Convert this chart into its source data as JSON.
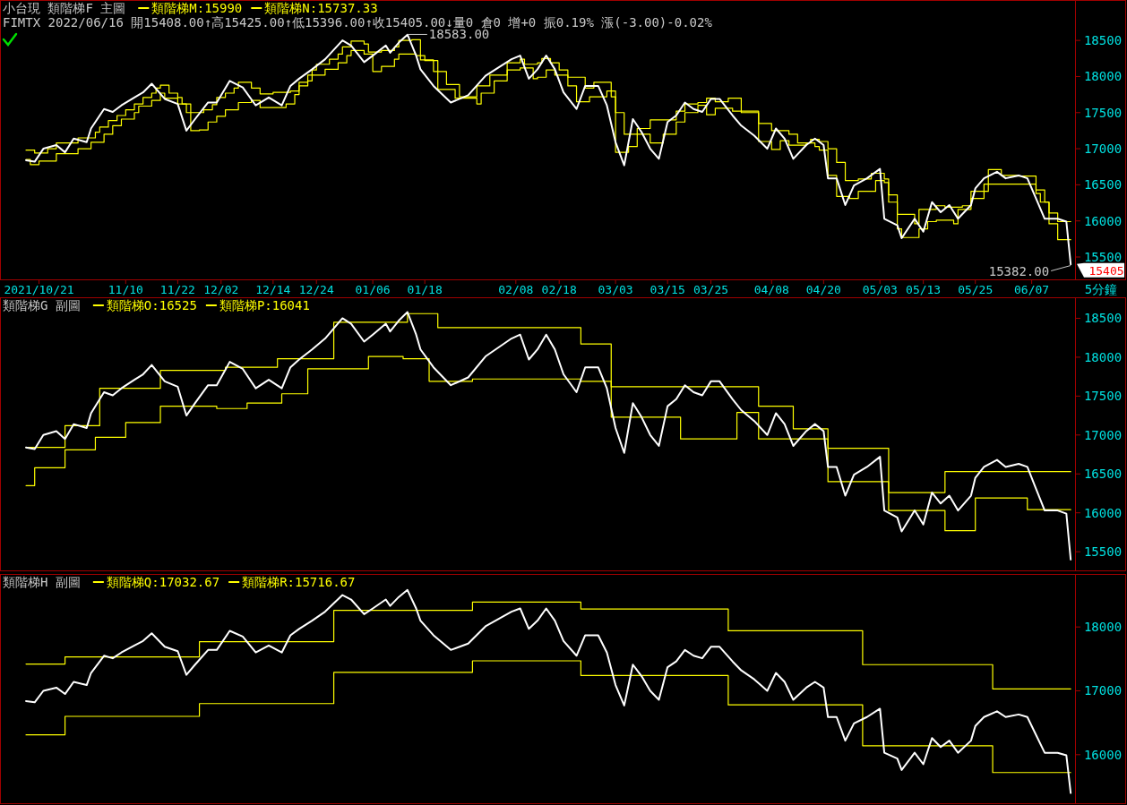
{
  "chart_data": [
    {
      "type": "line",
      "title": "小台現 類階梯F 主圖",
      "subtitle": "FIMTX 2022/06/16 開15408.00↑高15425.00↑低15396.00↑收15405.00↓量0 倉0 增+0 振0.19% 漲(-3.00)-0.02%",
      "xlabel": "5分鐘",
      "legend": "top left",
      "xlim": [
        "2021-10-12",
        "2022-06-17"
      ],
      "xticks": [
        {
          "value": "2021-10-21",
          "label": "2021/10/21"
        },
        {
          "value": "2021-11-10",
          "label": "11/10"
        },
        {
          "value": "2021-11-22",
          "label": "11/22"
        },
        {
          "value": "2021-12-02",
          "label": "12/02"
        },
        {
          "value": "2021-12-14",
          "label": "12/14"
        },
        {
          "value": "2021-12-24",
          "label": "12/24"
        },
        {
          "value": "2022-01-06",
          "label": "01/06"
        },
        {
          "value": "2022-01-18",
          "label": "01/18"
        },
        {
          "value": "2022-02-08",
          "label": "02/08"
        },
        {
          "value": "2022-02-18",
          "label": "02/18"
        },
        {
          "value": "2022-03-03",
          "label": "03/03"
        },
        {
          "value": "2022-03-15",
          "label": "03/15"
        },
        {
          "value": "2022-03-25",
          "label": "03/25"
        },
        {
          "value": "2022-04-08",
          "label": "04/08"
        },
        {
          "value": "2022-04-20",
          "label": "04/20"
        },
        {
          "value": "2022-05-03",
          "label": "05/03"
        },
        {
          "value": "2022-05-13",
          "label": "05/13"
        },
        {
          "value": "2022-05-25",
          "label": "05/25"
        },
        {
          "value": "2022-06-07",
          "label": "06/07"
        }
      ],
      "ylim": [
        15190,
        19060
      ],
      "yticks": [
        15500,
        16000,
        16500,
        17000,
        17500,
        18000,
        18500
      ],
      "annotations": [
        {
          "text": "18583.00",
          "x": "2022-01-14",
          "y": 18583
        },
        {
          "text": "15382.00",
          "x": "2022-06-16",
          "y": 15382
        },
        {
          "text": "15405",
          "x": "2022-06-16",
          "y": 15405
        }
      ],
      "series": [
        {
          "type": "line",
          "color": "#ffffff",
          "x": [
            "2021-10-18",
            "2021-10-20",
            "2021-10-22",
            "2021-10-25",
            "2021-10-27",
            "2021-10-29",
            "2021-11-01",
            "2021-11-02",
            "2021-11-05",
            "2021-11-07",
            "2021-11-09",
            "2021-11-12",
            "2021-11-14",
            "2021-11-16",
            "2021-11-19",
            "2021-11-22",
            "2021-11-24",
            "2021-11-26",
            "2021-11-29",
            "2021-12-01",
            "2021-12-04",
            "2021-12-07",
            "2021-12-10",
            "2021-12-13",
            "2021-12-16",
            "2021-12-18",
            "2021-12-20",
            "2021-12-23",
            "2021-12-26",
            "2021-12-30",
            "2022-01-01",
            "2022-01-04",
            "2022-01-06",
            "2022-01-09",
            "2022-01-10",
            "2022-01-12",
            "2022-01-14",
            "2022-01-16",
            "2022-01-17",
            "2022-01-20",
            "2022-01-24",
            "2022-01-28",
            "2022-02-01",
            "2022-02-07",
            "2022-02-09",
            "2022-02-11",
            "2022-02-13",
            "2022-02-15",
            "2022-02-17",
            "2022-02-19",
            "2022-02-22",
            "2022-02-24",
            "2022-02-27",
            "2022-03-01",
            "2022-03-03",
            "2022-03-05",
            "2022-03-07",
            "2022-03-09",
            "2022-03-11",
            "2022-03-13",
            "2022-03-15",
            "2022-03-17",
            "2022-03-19",
            "2022-03-21",
            "2022-03-23",
            "2022-03-25",
            "2022-03-27",
            "2022-03-30",
            "2022-04-01",
            "2022-04-04",
            "2022-04-07",
            "2022-04-09",
            "2022-04-11",
            "2022-04-13",
            "2022-04-16",
            "2022-04-18",
            "2022-04-20",
            "2022-04-21",
            "2022-04-23",
            "2022-04-25",
            "2022-04-27",
            "2022-04-30",
            "2022-05-03",
            "2022-05-04",
            "2022-05-07",
            "2022-05-08",
            "2022-05-11",
            "2022-05-13",
            "2022-05-15",
            "2022-05-17",
            "2022-05-19",
            "2022-05-21",
            "2022-05-24",
            "2022-05-25",
            "2022-05-27",
            "2022-05-30",
            "2022-06-01",
            "2022-06-04",
            "2022-06-06",
            "2022-06-08",
            "2022-06-10",
            "2022-06-13",
            "2022-06-15",
            "2022-06-16"
          ],
          "values": [
            16840,
            16820,
            17000,
            17050,
            16950,
            17140,
            17090,
            17280,
            17550,
            17510,
            17600,
            17710,
            17780,
            17900,
            17690,
            17620,
            17250,
            17410,
            17640,
            17640,
            17940,
            17850,
            17600,
            17710,
            17600,
            17870,
            17970,
            18100,
            18240,
            18500,
            18430,
            18200,
            18290,
            18430,
            18330,
            18470,
            18580,
            18290,
            18100,
            17870,
            17640,
            17740,
            18010,
            18240,
            18290,
            17970,
            18100,
            18290,
            18100,
            17780,
            17550,
            17870,
            17870,
            17600,
            17090,
            16770,
            17410,
            17230,
            17000,
            16860,
            17370,
            17460,
            17640,
            17550,
            17510,
            17690,
            17690,
            17460,
            17320,
            17180,
            17000,
            17280,
            17140,
            16860,
            17050,
            17140,
            17050,
            16590,
            16590,
            16220,
            16490,
            16590,
            16720,
            16030,
            15940,
            15760,
            16030,
            15850,
            16260,
            16120,
            16220,
            16030,
            16220,
            16450,
            16590,
            16680,
            16590,
            16630,
            16590,
            16310,
            16030,
            16030,
            15990,
            15400
          ]
        },
        {
          "type": "step",
          "name": "類階梯M:15990",
          "color": "#ffff00",
          "x": [
            "2021-10-18",
            "2021-10-20",
            "2021-10-23",
            "2021-10-25",
            "2021-10-30",
            "2021-11-03",
            "2021-11-04",
            "2021-11-06",
            "2021-11-08",
            "2021-11-10",
            "2021-11-12",
            "2021-11-14",
            "2021-11-16",
            "2021-11-17",
            "2021-11-18",
            "2021-11-20",
            "2021-11-22",
            "2021-11-23",
            "2021-11-24",
            "2021-11-28",
            "2021-11-30",
            "2021-12-01",
            "2021-12-03",
            "2021-12-05",
            "2021-12-06",
            "2021-12-09",
            "2021-12-11",
            "2021-12-14",
            "2021-12-18",
            "2021-12-20",
            "2021-12-22",
            "2021-12-23",
            "2021-12-24",
            "2021-12-27",
            "2021-12-29",
            "2021-12-30",
            "2022-01-01",
            "2022-01-04",
            "2022-01-05",
            "2022-01-08",
            "2022-01-11",
            "2022-01-12",
            "2022-01-15",
            "2022-01-17",
            "2022-01-20",
            "2022-01-23",
            "2022-01-26",
            "2022-01-30",
            "2022-02-02",
            "2022-02-06",
            "2022-02-09",
            "2022-02-10",
            "2022-02-13",
            "2022-02-14",
            "2022-02-16",
            "2022-02-18",
            "2022-02-20",
            "2022-02-24",
            "2022-02-26",
            "2022-03-02",
            "2022-03-03",
            "2022-03-05",
            "2022-03-08",
            "2022-03-11",
            "2022-03-17",
            "2022-03-19",
            "2022-03-22",
            "2022-03-24",
            "2022-03-26",
            "2022-03-29",
            "2022-04-01",
            "2022-04-05",
            "2022-04-08",
            "2022-04-12",
            "2022-04-14",
            "2022-04-17",
            "2022-04-19",
            "2022-04-21",
            "2022-04-23",
            "2022-04-25",
            "2022-04-28",
            "2022-05-01",
            "2022-05-04",
            "2022-05-05",
            "2022-05-07",
            "2022-05-11",
            "2022-05-12",
            "2022-05-16",
            "2022-05-18",
            "2022-05-22",
            "2022-05-24",
            "2022-05-28",
            "2022-05-31",
            "2022-06-04",
            "2022-06-08",
            "2022-06-10",
            "2022-06-11",
            "2022-06-13",
            "2022-06-16"
          ],
          "values": [
            16980,
            16940,
            17000,
            17080,
            17150,
            17230,
            17300,
            17390,
            17460,
            17540,
            17620,
            17710,
            17770,
            17840,
            17880,
            17770,
            17710,
            17620,
            17500,
            17540,
            17610,
            17710,
            17770,
            17840,
            17920,
            17840,
            17760,
            17780,
            17800,
            17920,
            18020,
            18090,
            18170,
            18240,
            18310,
            18410,
            18490,
            18450,
            18340,
            18360,
            18410,
            18500,
            18510,
            18230,
            18070,
            17890,
            17720,
            17870,
            18020,
            18190,
            18240,
            18170,
            18190,
            18250,
            18190,
            18090,
            17990,
            17840,
            17920,
            17720,
            17500,
            17200,
            17280,
            17400,
            17520,
            17620,
            17640,
            17700,
            17650,
            17700,
            17500,
            17350,
            17250,
            17200,
            17080,
            17130,
            17100,
            17000,
            16810,
            16560,
            16580,
            16660,
            16580,
            16360,
            16090,
            15960,
            16160,
            16210,
            16190,
            16210,
            16410,
            16710,
            16630,
            16620,
            16430,
            16260,
            16110,
            15990,
            15990
          ]
        },
        {
          "type": "step",
          "name": "類階梯N:15737.33",
          "color": "#ffff00",
          "x": [
            "2021-10-18",
            "2021-10-19",
            "2021-10-21",
            "2021-10-25",
            "2021-10-30",
            "2021-11-02",
            "2021-11-05",
            "2021-11-07",
            "2021-11-09",
            "2021-11-12",
            "2021-11-13",
            "2021-11-16",
            "2021-11-18",
            "2021-11-19",
            "2021-11-22",
            "2021-11-25",
            "2021-11-27",
            "2021-11-29",
            "2021-12-01",
            "2021-12-03",
            "2021-12-06",
            "2021-12-09",
            "2021-12-11",
            "2021-12-17",
            "2021-12-19",
            "2021-12-20",
            "2021-12-22",
            "2021-12-23",
            "2021-12-26",
            "2021-12-29",
            "2021-12-31",
            "2022-01-01",
            "2022-01-04",
            "2022-01-06",
            "2022-01-08",
            "2022-01-11",
            "2022-01-12",
            "2022-01-16",
            "2022-01-18",
            "2022-01-21",
            "2022-01-25",
            "2022-01-30",
            "2022-01-31",
            "2022-02-03",
            "2022-02-06",
            "2022-02-09",
            "2022-02-12",
            "2022-02-13",
            "2022-02-15",
            "2022-02-17",
            "2022-02-20",
            "2022-02-22",
            "2022-02-25",
            "2022-03-01",
            "2022-03-03",
            "2022-03-06",
            "2022-03-08",
            "2022-03-11",
            "2022-03-14",
            "2022-03-17",
            "2022-03-19",
            "2022-03-22",
            "2022-03-24",
            "2022-03-26",
            "2022-03-30",
            "2022-04-05",
            "2022-04-08",
            "2022-04-10",
            "2022-04-12",
            "2022-04-16",
            "2022-04-18",
            "2022-04-19",
            "2022-04-21",
            "2022-04-23",
            "2022-04-26",
            "2022-04-28",
            "2022-05-02",
            "2022-05-04",
            "2022-05-05",
            "2022-05-07",
            "2022-05-08",
            "2022-05-12",
            "2022-05-14",
            "2022-05-16",
            "2022-05-20",
            "2022-05-21",
            "2022-05-24",
            "2022-05-27",
            "2022-06-08",
            "2022-06-09",
            "2022-06-11",
            "2022-06-13",
            "2022-06-16"
          ],
          "values": [
            16850,
            16780,
            16830,
            16930,
            17000,
            17090,
            17200,
            17320,
            17410,
            17500,
            17590,
            17670,
            17770,
            17700,
            17620,
            17250,
            17260,
            17370,
            17450,
            17540,
            17640,
            17670,
            17570,
            17620,
            17750,
            17870,
            17940,
            18020,
            18100,
            18190,
            18290,
            18360,
            18310,
            18070,
            18140,
            18240,
            18310,
            18290,
            18220,
            17820,
            17700,
            17620,
            17770,
            17940,
            18090,
            18120,
            17970,
            17990,
            18090,
            18020,
            17870,
            17650,
            17720,
            17800,
            16950,
            17030,
            17200,
            17080,
            17200,
            17370,
            17500,
            17600,
            17470,
            17560,
            17520,
            17100,
            16990,
            17110,
            17050,
            17080,
            17030,
            16980,
            16630,
            16340,
            16310,
            16410,
            16560,
            16530,
            16260,
            15890,
            15770,
            15890,
            15990,
            16010,
            15960,
            16160,
            16310,
            16510,
            16380,
            16260,
            15960,
            15740,
            15740
          ]
        }
      ]
    },
    {
      "type": "line",
      "title": "類階梯G 副圖",
      "legend": "top left",
      "tick_labels": "y",
      "xlim": [
        "2021-10-12",
        "2022-06-17"
      ],
      "ylim": [
        15260,
        18770
      ],
      "yticks": [
        15500,
        16000,
        16500,
        17000,
        17500,
        18000,
        18500
      ],
      "series": [
        {
          "type": "line",
          "color": "#ffffff",
          "x": [
            "2021-10-18",
            "2021-10-20",
            "2021-10-22",
            "2021-10-25",
            "2021-10-27",
            "2021-10-29",
            "2021-11-01",
            "2021-11-02",
            "2021-11-05",
            "2021-11-07",
            "2021-11-09",
            "2021-11-12",
            "2021-11-14",
            "2021-11-16",
            "2021-11-19",
            "2021-11-22",
            "2021-11-24",
            "2021-11-26",
            "2021-11-29",
            "2021-12-01",
            "2021-12-04",
            "2021-12-07",
            "2021-12-10",
            "2021-12-13",
            "2021-12-16",
            "2021-12-18",
            "2021-12-20",
            "2021-12-23",
            "2021-12-26",
            "2021-12-30",
            "2022-01-01",
            "2022-01-04",
            "2022-01-06",
            "2022-01-09",
            "2022-01-10",
            "2022-01-12",
            "2022-01-14",
            "2022-01-16",
            "2022-01-17",
            "2022-01-20",
            "2022-01-24",
            "2022-01-28",
            "2022-02-01",
            "2022-02-07",
            "2022-02-09",
            "2022-02-11",
            "2022-02-13",
            "2022-02-15",
            "2022-02-17",
            "2022-02-19",
            "2022-02-22",
            "2022-02-24",
            "2022-02-27",
            "2022-03-01",
            "2022-03-03",
            "2022-03-05",
            "2022-03-07",
            "2022-03-09",
            "2022-03-11",
            "2022-03-13",
            "2022-03-15",
            "2022-03-17",
            "2022-03-19",
            "2022-03-21",
            "2022-03-23",
            "2022-03-25",
            "2022-03-27",
            "2022-03-30",
            "2022-04-01",
            "2022-04-04",
            "2022-04-07",
            "2022-04-09",
            "2022-04-11",
            "2022-04-13",
            "2022-04-16",
            "2022-04-18",
            "2022-04-20",
            "2022-04-21",
            "2022-04-23",
            "2022-04-25",
            "2022-04-27",
            "2022-04-30",
            "2022-05-03",
            "2022-05-04",
            "2022-05-07",
            "2022-05-08",
            "2022-05-11",
            "2022-05-13",
            "2022-05-15",
            "2022-05-17",
            "2022-05-19",
            "2022-05-21",
            "2022-05-24",
            "2022-05-25",
            "2022-05-27",
            "2022-05-30",
            "2022-06-01",
            "2022-06-04",
            "2022-06-06",
            "2022-06-08",
            "2022-06-10",
            "2022-06-13",
            "2022-06-15",
            "2022-06-16"
          ],
          "values": [
            16840,
            16820,
            17000,
            17050,
            16950,
            17140,
            17090,
            17280,
            17550,
            17510,
            17600,
            17710,
            17780,
            17900,
            17690,
            17620,
            17250,
            17410,
            17640,
            17640,
            17940,
            17850,
            17600,
            17710,
            17600,
            17870,
            17970,
            18100,
            18240,
            18500,
            18430,
            18200,
            18290,
            18430,
            18330,
            18470,
            18580,
            18290,
            18100,
            17870,
            17640,
            17740,
            18010,
            18240,
            18290,
            17970,
            18100,
            18290,
            18100,
            17780,
            17550,
            17870,
            17870,
            17600,
            17090,
            16770,
            17410,
            17230,
            17000,
            16860,
            17370,
            17460,
            17640,
            17550,
            17510,
            17690,
            17690,
            17460,
            17320,
            17180,
            17000,
            17280,
            17140,
            16860,
            17050,
            17140,
            17050,
            16590,
            16590,
            16220,
            16490,
            16590,
            16720,
            16030,
            15940,
            15760,
            16030,
            15850,
            16260,
            16120,
            16220,
            16030,
            16220,
            16450,
            16590,
            16680,
            16590,
            16630,
            16590,
            16310,
            16030,
            16030,
            15990,
            15400
          ]
        },
        {
          "type": "step",
          "name": "類階梯O:16525",
          "color": "#ffff00",
          "x": [
            "2021-10-18",
            "2021-10-27",
            "2021-11-04",
            "2021-11-18",
            "2021-12-03",
            "2021-12-15",
            "2021-12-28",
            "2022-01-14",
            "2022-01-21",
            "2022-02-23",
            "2022-03-02",
            "2022-04-05",
            "2022-04-13",
            "2022-04-21",
            "2022-05-05",
            "2022-05-18",
            "2022-06-16"
          ],
          "values": [
            16840,
            17120,
            17600,
            17830,
            17870,
            17980,
            18450,
            18560,
            18380,
            18170,
            17620,
            17370,
            17080,
            16830,
            16260,
            16530,
            16530
          ]
        },
        {
          "type": "step",
          "name": "類階梯P:16041",
          "color": "#ffff00",
          "x": [
            "2021-10-18",
            "2021-10-20",
            "2021-10-27",
            "2021-11-03",
            "2021-11-10",
            "2021-11-18",
            "2021-12-01",
            "2021-12-08",
            "2021-12-16",
            "2021-12-22",
            "2022-01-05",
            "2022-01-13",
            "2022-01-19",
            "2022-01-29",
            "2022-02-23",
            "2022-03-02",
            "2022-03-18",
            "2022-03-31",
            "2022-04-05",
            "2022-04-21",
            "2022-05-05",
            "2022-05-18",
            "2022-05-25",
            "2022-06-06",
            "2022-06-16"
          ],
          "values": [
            16350,
            16580,
            16810,
            16970,
            17160,
            17370,
            17340,
            17410,
            17530,
            17850,
            18010,
            17980,
            17690,
            17720,
            17690,
            17230,
            16950,
            17290,
            16950,
            16400,
            16030,
            15770,
            16190,
            16040,
            16040
          ]
        }
      ]
    },
    {
      "type": "line",
      "title": "類階梯H 副圖",
      "legend": "top left",
      "tick_labels": "y",
      "xlim": [
        "2021-10-12",
        "2022-06-17"
      ],
      "ylim": [
        15240,
        18830
      ],
      "yticks": [
        16000,
        17000,
        18000
      ],
      "series": [
        {
          "type": "line",
          "color": "#ffffff",
          "x": [
            "2021-10-18",
            "2021-10-20",
            "2021-10-22",
            "2021-10-25",
            "2021-10-27",
            "2021-10-29",
            "2021-11-01",
            "2021-11-02",
            "2021-11-05",
            "2021-11-07",
            "2021-11-09",
            "2021-11-12",
            "2021-11-14",
            "2021-11-16",
            "2021-11-19",
            "2021-11-22",
            "2021-11-24",
            "2021-11-26",
            "2021-11-29",
            "2021-12-01",
            "2021-12-04",
            "2021-12-07",
            "2021-12-10",
            "2021-12-13",
            "2021-12-16",
            "2021-12-18",
            "2021-12-20",
            "2021-12-23",
            "2021-12-26",
            "2021-12-30",
            "2022-01-01",
            "2022-01-04",
            "2022-01-06",
            "2022-01-09",
            "2022-01-10",
            "2022-01-12",
            "2022-01-14",
            "2022-01-16",
            "2022-01-17",
            "2022-01-20",
            "2022-01-24",
            "2022-01-28",
            "2022-02-01",
            "2022-02-07",
            "2022-02-09",
            "2022-02-11",
            "2022-02-13",
            "2022-02-15",
            "2022-02-17",
            "2022-02-19",
            "2022-02-22",
            "2022-02-24",
            "2022-02-27",
            "2022-03-01",
            "2022-03-03",
            "2022-03-05",
            "2022-03-07",
            "2022-03-09",
            "2022-03-11",
            "2022-03-13",
            "2022-03-15",
            "2022-03-17",
            "2022-03-19",
            "2022-03-21",
            "2022-03-23",
            "2022-03-25",
            "2022-03-27",
            "2022-03-30",
            "2022-04-01",
            "2022-04-04",
            "2022-04-07",
            "2022-04-09",
            "2022-04-11",
            "2022-04-13",
            "2022-04-16",
            "2022-04-18",
            "2022-04-20",
            "2022-04-21",
            "2022-04-23",
            "2022-04-25",
            "2022-04-27",
            "2022-04-30",
            "2022-05-03",
            "2022-05-04",
            "2022-05-07",
            "2022-05-08",
            "2022-05-11",
            "2022-05-13",
            "2022-05-15",
            "2022-05-17",
            "2022-05-19",
            "2022-05-21",
            "2022-05-24",
            "2022-05-25",
            "2022-05-27",
            "2022-05-30",
            "2022-06-01",
            "2022-06-04",
            "2022-06-06",
            "2022-06-08",
            "2022-06-10",
            "2022-06-13",
            "2022-06-15",
            "2022-06-16"
          ],
          "values": [
            16840,
            16820,
            17000,
            17050,
            16950,
            17140,
            17090,
            17280,
            17550,
            17510,
            17600,
            17710,
            17780,
            17900,
            17690,
            17620,
            17250,
            17410,
            17640,
            17640,
            17940,
            17850,
            17600,
            17710,
            17600,
            17870,
            17970,
            18100,
            18240,
            18500,
            18430,
            18200,
            18290,
            18430,
            18330,
            18470,
            18580,
            18290,
            18100,
            17870,
            17640,
            17740,
            18010,
            18240,
            18290,
            17970,
            18100,
            18290,
            18100,
            17780,
            17550,
            17870,
            17870,
            17600,
            17090,
            16770,
            17410,
            17230,
            17000,
            16860,
            17370,
            17460,
            17640,
            17550,
            17510,
            17690,
            17690,
            17460,
            17320,
            17180,
            17000,
            17280,
            17140,
            16860,
            17050,
            17140,
            17050,
            16590,
            16590,
            16220,
            16490,
            16590,
            16720,
            16030,
            15940,
            15760,
            16030,
            15850,
            16260,
            16120,
            16220,
            16030,
            16220,
            16450,
            16590,
            16680,
            16590,
            16630,
            16590,
            16310,
            16030,
            16030,
            15990,
            15400
          ]
        },
        {
          "type": "step",
          "name": "類階梯Q:17032.67",
          "color": "#ffff00",
          "x": [
            "2021-10-18",
            "2021-10-27",
            "2021-11-27",
            "2021-12-28",
            "2022-01-29",
            "2022-02-23",
            "2022-03-29",
            "2022-04-29",
            "2022-05-29",
            "2022-06-16"
          ],
          "values": [
            17420,
            17530,
            17770,
            18260,
            18390,
            18280,
            17940,
            17410,
            17030,
            17030
          ]
        },
        {
          "type": "step",
          "name": "類階梯R:15716.67",
          "color": "#ffff00",
          "x": [
            "2021-10-18",
            "2021-10-27",
            "2021-11-27",
            "2021-12-28",
            "2022-01-29",
            "2022-02-23",
            "2022-03-29",
            "2022-04-29",
            "2022-05-29",
            "2022-06-16"
          ],
          "values": [
            16310,
            16600,
            16800,
            17290,
            17470,
            17240,
            16780,
            16140,
            15720,
            15720
          ]
        }
      ]
    }
  ]
}
